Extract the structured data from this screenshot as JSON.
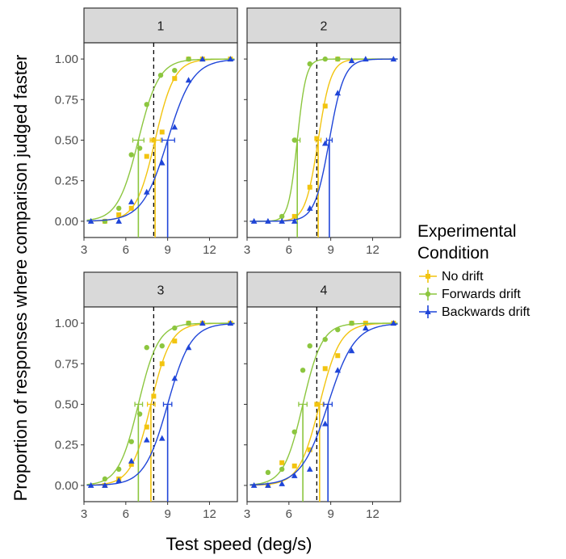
{
  "chart_data": {
    "type": "scatter",
    "xlabel": "Test speed (deg/s)",
    "ylabel": "Proportion of responses where comparison judged faster",
    "xlim": [
      3,
      14
    ],
    "ylim": [
      -0.1,
      1.1
    ],
    "xticks": [
      3,
      6,
      9,
      12
    ],
    "yticks": [
      0.0,
      0.25,
      0.5,
      0.75,
      1.0
    ],
    "ytick_labels": [
      "0.00",
      "0.25",
      "0.50",
      "0.75",
      "1.00"
    ],
    "reference_line_x": 8,
    "legend": {
      "title_lines": [
        "Experimental",
        "Condition"
      ],
      "placement": "right"
    },
    "series_styles": [
      {
        "name": "No drift",
        "color": "#f2c40f",
        "marker": "square"
      },
      {
        "name": "Forwards drift",
        "color": "#8cc63f",
        "marker": "circle"
      },
      {
        "name": "Backwards drift",
        "color": "#1f45d8",
        "marker": "triangle"
      }
    ],
    "panels": [
      {
        "label": "1",
        "series": [
          {
            "name": "No drift",
            "pse": 8.1,
            "pse_ci": [
              7.75,
              8.5
            ],
            "slope": 1.45,
            "x": [
              4.5,
              5.5,
              6.4,
              7.5,
              8.0,
              8.6,
              9.5,
              10.5,
              11.5,
              13.5
            ],
            "y": [
              0.0,
              0.04,
              0.08,
              0.4,
              0.5,
              0.55,
              0.88,
              1.0,
              1.0,
              1.0
            ]
          },
          {
            "name": "Forwards drift",
            "pse": 6.9,
            "pse_ci": [
              6.5,
              7.3
            ],
            "slope": 1.35,
            "x": [
              4.5,
              5.5,
              6.4,
              7.0,
              7.5,
              8.5,
              9.5,
              10.5
            ],
            "y": [
              0.0,
              0.08,
              0.41,
              0.45,
              0.72,
              0.9,
              0.93,
              1.0
            ]
          },
          {
            "name": "Backwards drift",
            "pse": 9.0,
            "pse_ci": [
              8.6,
              9.5
            ],
            "slope": 1.1,
            "x": [
              3.5,
              5.5,
              6.4,
              7.5,
              8.6,
              9.5,
              10.5,
              11.5,
              13.5
            ],
            "y": [
              0.0,
              0.0,
              0.12,
              0.18,
              0.36,
              0.58,
              0.87,
              1.0,
              1.0
            ]
          }
        ]
      },
      {
        "label": "2",
        "series": [
          {
            "name": "No drift",
            "pse": 8.1,
            "pse_ci": [
              7.95,
              8.3
            ],
            "slope": 2.2,
            "x": [
              6.4,
              7.5,
              8.0,
              8.6,
              9.5
            ],
            "y": [
              0.03,
              0.21,
              0.51,
              0.71,
              1.0
            ]
          },
          {
            "name": "Forwards drift",
            "pse": 6.6,
            "pse_ci": [
              6.5,
              6.8
            ],
            "slope": 3.2,
            "x": [
              5.5,
              6.4,
              7.5,
              8.6,
              9.5
            ],
            "y": [
              0.03,
              0.5,
              0.97,
              1.0,
              1.0
            ]
          },
          {
            "name": "Backwards drift",
            "pse": 8.9,
            "pse_ci": [
              8.7,
              9.1
            ],
            "slope": 1.9,
            "x": [
              3.5,
              4.5,
              5.5,
              6.4,
              7.5,
              8.6,
              9.5,
              10.5,
              11.5,
              13.5
            ],
            "y": [
              0.0,
              0.0,
              0.0,
              0.0,
              0.08,
              0.48,
              0.79,
              0.99,
              1.0,
              1.0
            ]
          }
        ]
      },
      {
        "label": "3",
        "series": [
          {
            "name": "No drift",
            "pse": 7.8,
            "pse_ci": [
              7.55,
              8.1
            ],
            "slope": 1.4,
            "x": [
              4.5,
              5.5,
              6.4,
              7.5,
              8.0,
              8.6,
              9.5,
              10.5,
              11.5,
              13.5
            ],
            "y": [
              0.0,
              0.04,
              0.13,
              0.36,
              0.55,
              0.75,
              0.89,
              1.0,
              1.0,
              1.0
            ]
          },
          {
            "name": "Forwards drift",
            "pse": 6.9,
            "pse_ci": [
              6.65,
              7.2
            ],
            "slope": 1.4,
            "x": [
              4.5,
              5.5,
              6.4,
              7.0,
              7.5,
              8.6,
              9.5,
              10.5
            ],
            "y": [
              0.04,
              0.1,
              0.27,
              0.44,
              0.85,
              0.86,
              0.97,
              1.0
            ]
          },
          {
            "name": "Backwards drift",
            "pse": 9.0,
            "pse_ci": [
              8.7,
              9.3
            ],
            "slope": 1.2,
            "x": [
              3.5,
              4.5,
              5.5,
              6.4,
              7.5,
              8.6,
              9.5,
              10.5,
              11.5,
              13.5
            ],
            "y": [
              0.0,
              0.0,
              0.03,
              0.15,
              0.28,
              0.29,
              0.66,
              0.85,
              1.0,
              1.0
            ]
          }
        ]
      },
      {
        "label": "4",
        "series": [
          {
            "name": "No drift",
            "pse": 8.2,
            "pse_ci": [
              7.95,
              8.45
            ],
            "slope": 1.35,
            "x": [
              4.5,
              5.5,
              6.4,
              7.5,
              8.0,
              8.6,
              9.5,
              10.5,
              11.5,
              13.5
            ],
            "y": [
              0.0,
              0.14,
              0.12,
              0.22,
              0.5,
              0.72,
              0.8,
              1.0,
              1.0,
              1.0
            ]
          },
          {
            "name": "Forwards drift",
            "pse": 7.0,
            "pse_ci": [
              6.7,
              7.3
            ],
            "slope": 1.45,
            "x": [
              4.5,
              5.5,
              6.4,
              7.0,
              7.5,
              8.6,
              9.5,
              10.5
            ],
            "y": [
              0.08,
              0.1,
              0.33,
              0.71,
              0.86,
              0.9,
              0.96,
              1.0
            ]
          },
          {
            "name": "Backwards drift",
            "pse": 8.8,
            "pse_ci": [
              8.5,
              9.1
            ],
            "slope": 1.05,
            "x": [
              3.5,
              4.5,
              5.5,
              6.4,
              7.5,
              8.6,
              9.5,
              10.5,
              11.5,
              13.5
            ],
            "y": [
              0.0,
              0.0,
              0.01,
              0.06,
              0.1,
              0.38,
              0.71,
              0.83,
              0.97,
              1.0
            ]
          }
        ]
      }
    ]
  }
}
